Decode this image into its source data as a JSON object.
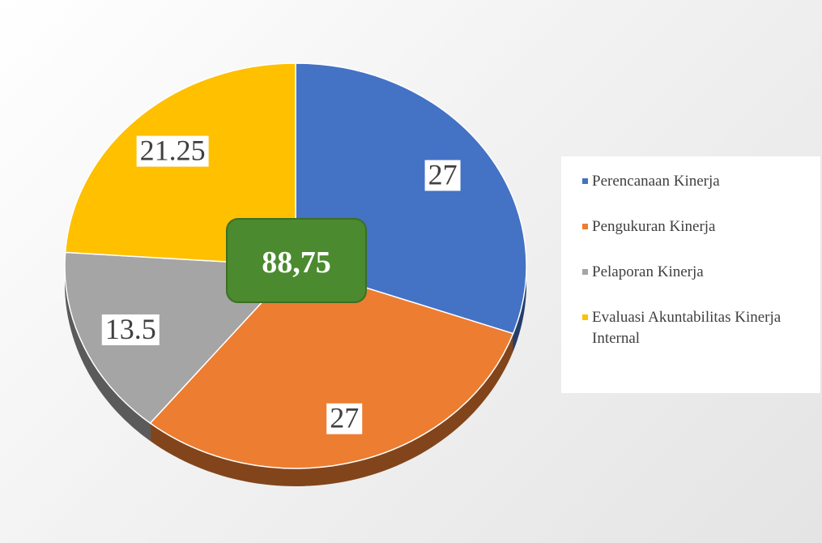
{
  "chart_data": {
    "type": "pie",
    "categories": [
      "Perencanaan Kinerja",
      "Pengukuran Kinerja",
      "Pelaporan Kinerja",
      "Evaluasi Akuntabilitas Kinerja Internal"
    ],
    "values": [
      27,
      27,
      13.5,
      21.25
    ],
    "colors": [
      "#4472c4",
      "#ed7d31",
      "#a5a5a5",
      "#ffc000"
    ],
    "legend": "right",
    "annotation": "88,75"
  }
}
